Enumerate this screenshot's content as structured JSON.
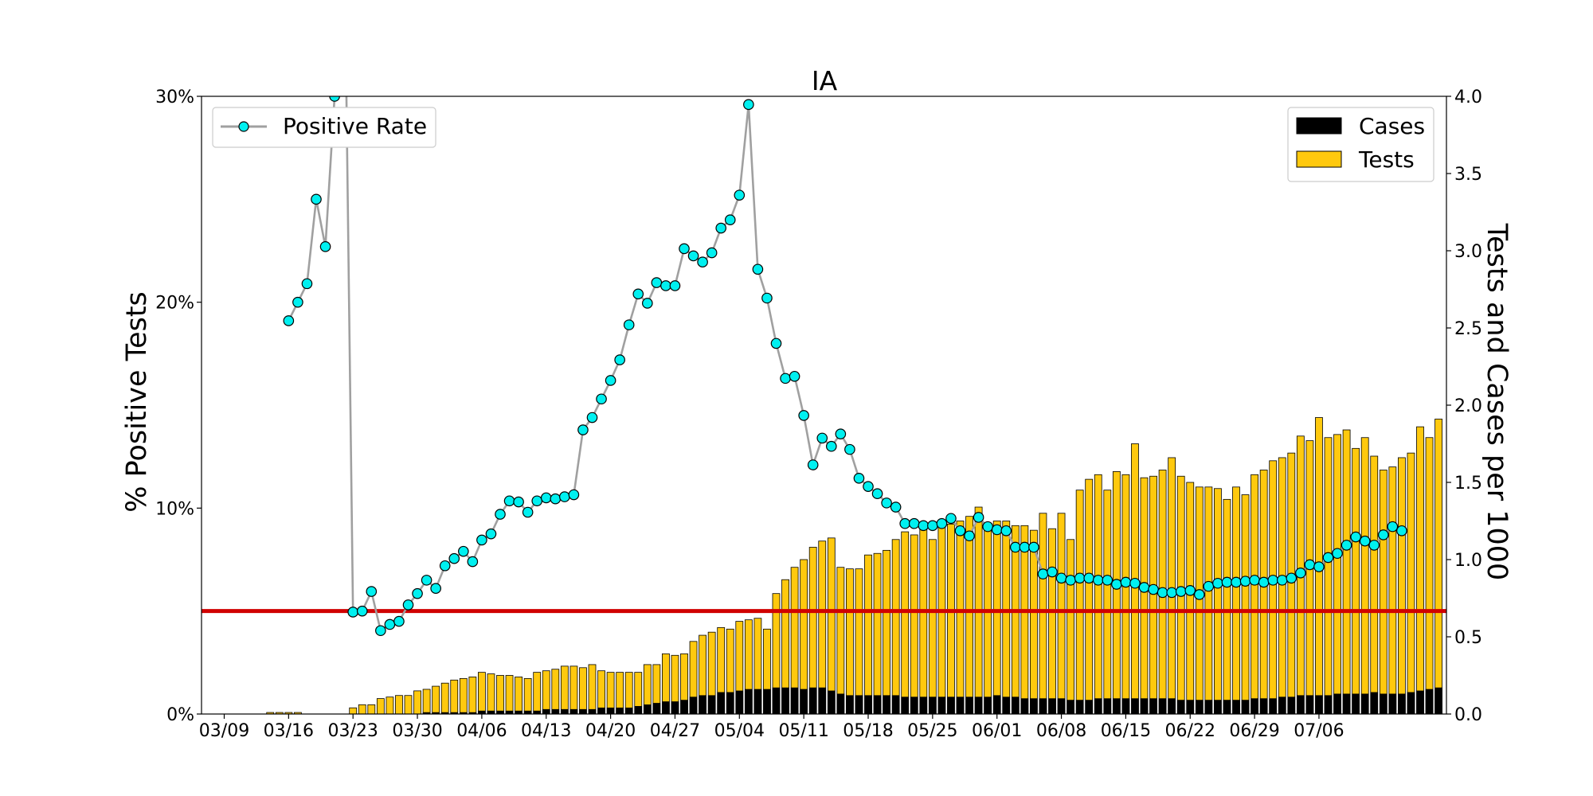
{
  "chart_data": {
    "type": "bar+line",
    "title": "IA",
    "ylabel_left": "% Positive Tests",
    "ylabel_right": "Tests and Cases per 1000",
    "ylim_left": [
      0,
      30
    ],
    "ylim_right": [
      0,
      4.0
    ],
    "left_ticks": [
      "0%",
      "10%",
      "20%",
      "30%"
    ],
    "right_ticks": [
      "0.0",
      "0.5",
      "1.0",
      "1.5",
      "2.0",
      "2.5",
      "3.0",
      "3.5",
      "4.0"
    ],
    "x_tick_labels": [
      "03/09",
      "03/16",
      "03/23",
      "03/30",
      "04/06",
      "04/13",
      "04/20",
      "04/27",
      "05/04",
      "05/11",
      "05/18",
      "05/25",
      "06/01",
      "06/08",
      "06/15",
      "06/22",
      "06/29",
      "07/06"
    ],
    "threshold_percent": 5,
    "colors": {
      "tests": "#ffc90e",
      "cases": "#000000",
      "rate_marker": "#00f0f0",
      "rate_line": "#a0a0a0",
      "threshold": "#d00000"
    },
    "legend_left": {
      "position": "top-left",
      "label": "Positive Rate"
    },
    "legend_right": {
      "position": "top-right",
      "labels": [
        "Cases",
        "Tests"
      ]
    },
    "x_start": "03/09",
    "tests_per_1000": [
      0,
      0,
      0,
      0,
      0,
      0.01,
      0.01,
      0.01,
      0.01,
      0,
      0,
      0,
      0,
      0,
      0.04,
      0.06,
      0.06,
      0.1,
      0.11,
      0.12,
      0.12,
      0.15,
      0.16,
      0.18,
      0.2,
      0.22,
      0.23,
      0.24,
      0.27,
      0.26,
      0.25,
      0.25,
      0.24,
      0.23,
      0.27,
      0.28,
      0.29,
      0.31,
      0.31,
      0.3,
      0.32,
      0.28,
      0.27,
      0.27,
      0.27,
      0.27,
      0.32,
      0.32,
      0.39,
      0.38,
      0.39,
      0.47,
      0.51,
      0.53,
      0.56,
      0.55,
      0.6,
      0.61,
      0.62,
      0.55,
      0.78,
      0.87,
      0.95,
      1.0,
      1.08,
      1.12,
      1.14,
      0.95,
      0.94,
      0.94,
      1.03,
      1.04,
      1.06,
      1.13,
      1.18,
      1.16,
      1.2,
      1.13,
      1.21,
      1.23,
      1.25,
      1.28,
      1.34,
      1.22,
      1.25,
      1.25,
      1.22,
      1.22,
      1.19,
      1.3,
      1.2,
      1.3,
      1.13,
      1.45,
      1.52,
      1.55,
      1.45,
      1.57,
      1.55,
      1.75,
      1.53,
      1.54,
      1.58,
      1.66,
      1.54,
      1.5,
      1.47,
      1.47,
      1.46,
      1.39,
      1.47,
      1.42,
      1.55,
      1.58,
      1.64,
      1.66,
      1.69,
      1.8,
      1.77,
      1.92,
      1.79,
      1.81,
      1.84,
      1.72,
      1.79,
      1.67,
      1.58,
      1.6,
      1.66,
      1.69,
      1.86,
      1.79,
      1.91
    ],
    "cases_per_1000": [
      0,
      0,
      0,
      0,
      0,
      0,
      0,
      0,
      0,
      0,
      0,
      0,
      0,
      0,
      0,
      0,
      0,
      0,
      0,
      0,
      0,
      0,
      0.01,
      0.01,
      0.01,
      0.01,
      0.01,
      0.01,
      0.02,
      0.02,
      0.02,
      0.02,
      0.02,
      0.02,
      0.02,
      0.03,
      0.03,
      0.03,
      0.03,
      0.03,
      0.03,
      0.04,
      0.04,
      0.04,
      0.04,
      0.05,
      0.06,
      0.07,
      0.08,
      0.08,
      0.09,
      0.11,
      0.12,
      0.12,
      0.14,
      0.14,
      0.15,
      0.16,
      0.16,
      0.16,
      0.17,
      0.17,
      0.17,
      0.16,
      0.17,
      0.17,
      0.15,
      0.13,
      0.12,
      0.12,
      0.12,
      0.12,
      0.12,
      0.12,
      0.11,
      0.11,
      0.11,
      0.11,
      0.11,
      0.11,
      0.11,
      0.11,
      0.11,
      0.11,
      0.12,
      0.11,
      0.11,
      0.1,
      0.1,
      0.1,
      0.1,
      0.1,
      0.09,
      0.09,
      0.09,
      0.1,
      0.1,
      0.1,
      0.1,
      0.1,
      0.1,
      0.1,
      0.1,
      0.1,
      0.09,
      0.09,
      0.09,
      0.09,
      0.09,
      0.09,
      0.09,
      0.09,
      0.1,
      0.1,
      0.1,
      0.11,
      0.11,
      0.12,
      0.12,
      0.12,
      0.12,
      0.13,
      0.13,
      0.13,
      0.13,
      0.14,
      0.13,
      0.13,
      0.13,
      0.14,
      0.15,
      0.16,
      0.17
    ],
    "positive_rate_percent": [
      null,
      null,
      null,
      null,
      null,
      null,
      null,
      19.1,
      20.0,
      20.9,
      25.0,
      22.7,
      30.0,
      40.0,
      4.95,
      5.0,
      5.95,
      4.05,
      4.35,
      4.5,
      5.3,
      5.85,
      6.5,
      6.1,
      7.2,
      7.55,
      7.9,
      7.4,
      8.45,
      8.75,
      9.7,
      10.35,
      10.3,
      9.8,
      10.35,
      10.5,
      10.45,
      10.55,
      10.65,
      13.8,
      14.4,
      15.3,
      16.2,
      17.2,
      18.9,
      20.4,
      19.95,
      20.95,
      20.8,
      20.8,
      22.6,
      22.25,
      21.95,
      22.4,
      23.6,
      24.0,
      25.2,
      29.6,
      21.6,
      20.2,
      18.0,
      16.3,
      16.4,
      14.5,
      12.1,
      13.4,
      13.0,
      13.6,
      12.85,
      11.45,
      11.05,
      10.7,
      10.25,
      10.05,
      9.25,
      9.25,
      9.15,
      9.15,
      9.25,
      9.5,
      8.9,
      8.65,
      9.55,
      9.1,
      8.95,
      8.9,
      8.1,
      8.1,
      8.1,
      6.8,
      6.9,
      6.6,
      6.5,
      6.6,
      6.6,
      6.5,
      6.5,
      6.3,
      6.4,
      6.35,
      6.15,
      6.05,
      5.9,
      5.9,
      5.95,
      6.0,
      5.8,
      6.2,
      6.35,
      6.4,
      6.4,
      6.45,
      6.5,
      6.4,
      6.5,
      6.5,
      6.6,
      6.85,
      7.25,
      7.15,
      7.6,
      7.8,
      8.2,
      8.6,
      8.4,
      8.2,
      8.7,
      9.1,
      8.9
    ]
  }
}
